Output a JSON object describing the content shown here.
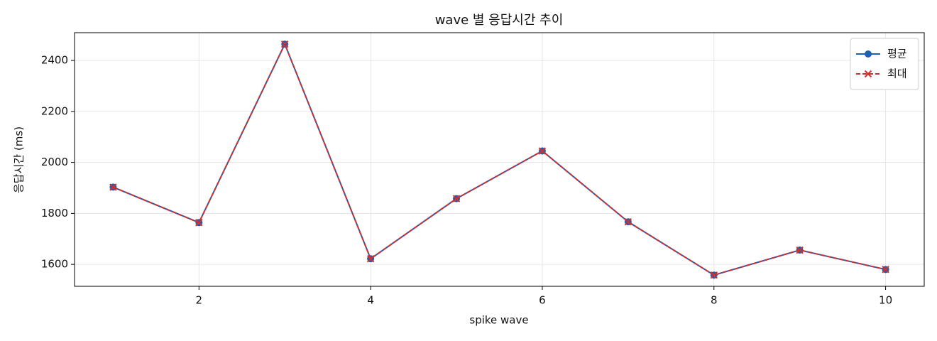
{
  "chart_data": {
    "type": "line",
    "title": "wave 별 응답시간 추이",
    "xlabel": "spike wave",
    "ylabel": "응답시간 (ms)",
    "x": [
      1,
      2,
      3,
      4,
      5,
      6,
      7,
      8,
      9,
      10
    ],
    "series": [
      {
        "name": "평균",
        "color": "#1f5fb4",
        "marker": "o",
        "linestyle": "solid",
        "values": [
          1903,
          1764,
          2464,
          1622,
          1858,
          2045,
          1767,
          1558,
          1656,
          1580
        ]
      },
      {
        "name": "최대",
        "color": "#d0302f",
        "marker": "x",
        "linestyle": "dashed",
        "values": [
          1903,
          1764,
          2464,
          1622,
          1858,
          2045,
          1767,
          1558,
          1656,
          1580
        ]
      }
    ],
    "xlim": [
      0.55,
      10.45
    ],
    "xticks": [
      2,
      4,
      6,
      8,
      10
    ],
    "ylim": [
      1514,
      2509
    ],
    "yticks": [
      1600,
      1800,
      2000,
      2200,
      2400
    ],
    "grid": true,
    "legend": "upper right"
  }
}
